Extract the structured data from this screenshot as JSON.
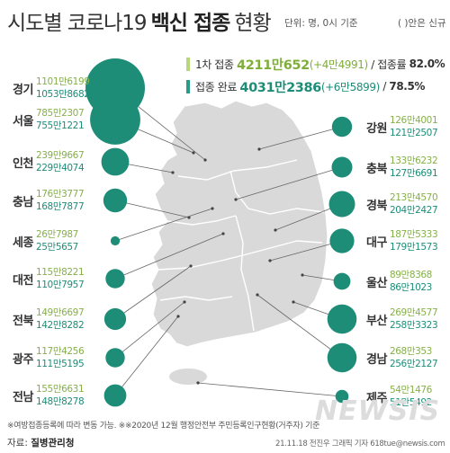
{
  "header": {
    "title_plain": "시도별 코로나19",
    "title_bold": "백신 접종",
    "title_tail": "현황",
    "unit_note": "단위: 명, 0시 기준",
    "paren_note": "( )안은 신규"
  },
  "summary": {
    "first": {
      "label": "1차 접종",
      "total": "4211만652",
      "change": "(+4만4991)",
      "rate_label": "/ 접종률",
      "rate": "82.0%"
    },
    "complete": {
      "label": "접종 완료",
      "total": "4031만2386",
      "change": "(+6만5899)",
      "rate_label": "/",
      "rate": "78.5%"
    }
  },
  "chart_data": {
    "type": "bubble",
    "series": [
      {
        "name": "1차 접종",
        "color": "#86b04a"
      },
      {
        "name": "접종 완료",
        "color": "#1d8d78"
      }
    ],
    "regions": [
      {
        "name": "경기",
        "side": "left",
        "first_text": "1101만6199",
        "complete_text": "1053만8682",
        "first": 11016199,
        "complete": 10538682
      },
      {
        "name": "서울",
        "side": "left",
        "first_text": "785만2307",
        "complete_text": "755만1221",
        "first": 7852307,
        "complete": 7551221
      },
      {
        "name": "인천",
        "side": "left",
        "first_text": "239만9667",
        "complete_text": "229만4074",
        "first": 2399667,
        "complete": 2294074
      },
      {
        "name": "충남",
        "side": "left",
        "first_text": "176만3777",
        "complete_text": "168만7877",
        "first": 1763777,
        "complete": 1687877
      },
      {
        "name": "세종",
        "side": "left",
        "first_text": "26만7987",
        "complete_text": "25만5657",
        "first": 267987,
        "complete": 255657
      },
      {
        "name": "대전",
        "side": "left",
        "first_text": "115만8221",
        "complete_text": "110만7957",
        "first": 1158221,
        "complete": 1107957
      },
      {
        "name": "전북",
        "side": "left",
        "first_text": "149만6697",
        "complete_text": "142만8282",
        "first": 1496697,
        "complete": 1428282
      },
      {
        "name": "광주",
        "side": "left",
        "first_text": "117만4256",
        "complete_text": "111만5195",
        "first": 1174256,
        "complete": 1115195
      },
      {
        "name": "전남",
        "side": "left",
        "first_text": "155만6631",
        "complete_text": "148만8278",
        "first": 1556631,
        "complete": 1488278
      },
      {
        "name": "강원",
        "side": "right",
        "first_text": "126만4001",
        "complete_text": "121만2507",
        "first": 1264001,
        "complete": 1212507
      },
      {
        "name": "충북",
        "side": "right",
        "first_text": "133만6232",
        "complete_text": "127만6691",
        "first": 1336232,
        "complete": 1276691
      },
      {
        "name": "경북",
        "side": "right",
        "first_text": "213만4570",
        "complete_text": "204만2427",
        "first": 2134570,
        "complete": 2042427
      },
      {
        "name": "대구",
        "side": "right",
        "first_text": "187만5333",
        "complete_text": "179만1573",
        "first": 1875333,
        "complete": 1791573
      },
      {
        "name": "울산",
        "side": "right",
        "first_text": "89만8368",
        "complete_text": "86만1023",
        "first": 898368,
        "complete": 861023
      },
      {
        "name": "부산",
        "side": "right",
        "first_text": "269만4577",
        "complete_text": "258만3323",
        "first": 2694577,
        "complete": 2583323
      },
      {
        "name": "경남",
        "side": "right",
        "first_text": "268만353",
        "complete_text": "256만2127",
        "first": 2680353,
        "complete": 2562127
      },
      {
        "name": "제주",
        "side": "right",
        "first_text": "54만1476",
        "complete_text": "51만5492",
        "first": 541476,
        "complete": 515492
      }
    ]
  },
  "footer": {
    "footnote": "※여방접종등록에 따라 변동 가능.  ※※2020년 12월 행정안전부 주민등록인구현황(거주자) 기준",
    "source_label": "자료:",
    "source_name": "질병관리청",
    "credit": "21.11.18 전진우 그래픽 기자 618tue@newsis.com",
    "watermark": "NEWSIS"
  }
}
